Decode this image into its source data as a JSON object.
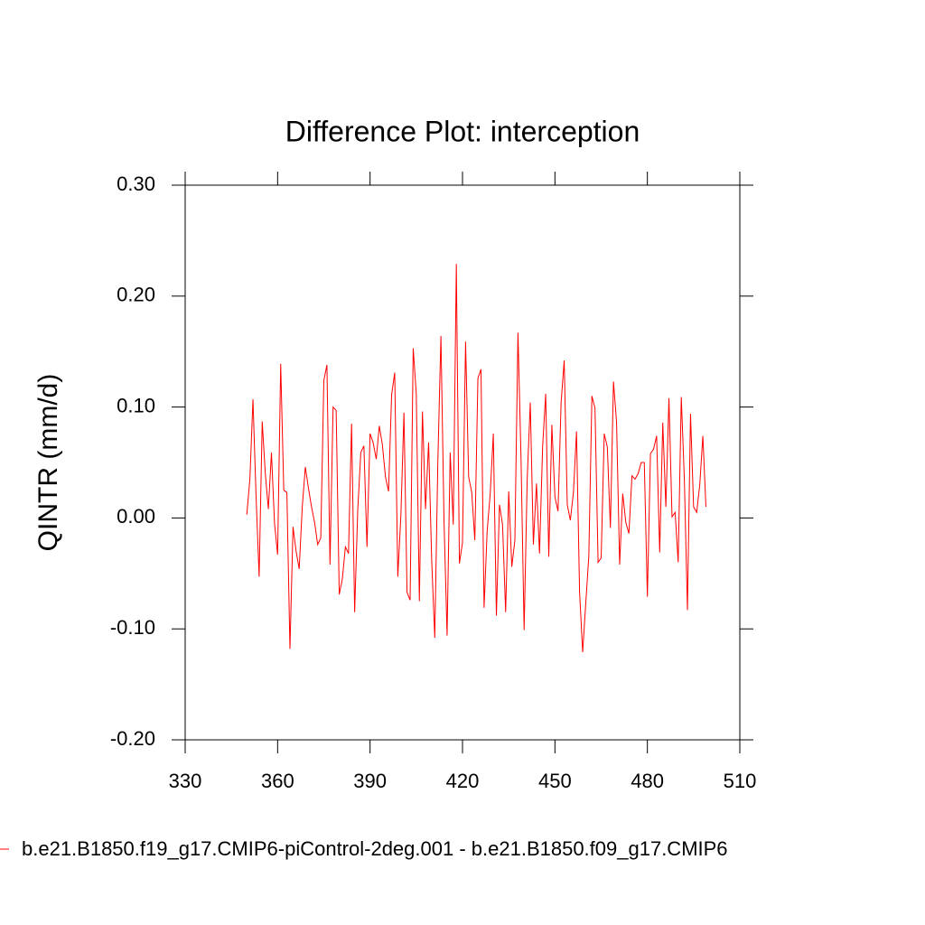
{
  "chart_data": {
    "type": "line",
    "title": "Difference Plot: interception",
    "y_label": "QINTR  (mm/d)",
    "x": [
      350,
      351,
      352,
      353,
      354,
      355,
      356,
      357,
      358,
      359,
      360,
      361,
      362,
      363,
      364,
      365,
      366,
      367,
      368,
      369,
      370,
      371,
      372,
      373,
      374,
      375,
      376,
      377,
      378,
      379,
      380,
      381,
      382,
      383,
      384,
      385,
      386,
      387,
      388,
      389,
      390,
      391,
      392,
      393,
      394,
      395,
      396,
      397,
      398,
      399,
      400,
      401,
      402,
      403,
      404,
      405,
      406,
      407,
      408,
      409,
      410,
      411,
      412,
      413,
      414,
      415,
      416,
      417,
      418,
      419,
      420,
      421,
      422,
      423,
      424,
      425,
      426,
      427,
      428,
      429,
      430,
      431,
      432,
      433,
      434,
      435,
      436,
      437,
      438,
      439,
      440,
      441,
      442,
      443,
      444,
      445,
      446,
      447,
      448,
      449,
      450,
      451,
      452,
      453,
      454,
      455,
      456,
      457,
      458,
      459,
      460,
      461,
      462,
      463,
      464,
      465,
      466,
      467,
      468,
      469,
      470,
      471,
      472,
      473,
      474,
      475,
      476,
      477,
      478,
      479,
      480,
      481,
      482,
      483,
      484,
      485,
      486,
      487,
      488,
      489,
      490,
      491,
      492,
      493,
      494,
      495,
      496,
      497,
      498,
      499
    ],
    "series": [
      {
        "name": "b.e21.B1850.f19_g17.CMIP6-piControl-2deg.001 - b.e21.B1850.f09_g17.CMIP6",
        "color": "#ff0000",
        "values": [
          0.003,
          0.035,
          0.107,
          0.02,
          -0.053,
          0.087,
          0.04,
          0.008,
          0.059,
          -0.005,
          -0.033,
          0.139,
          0.025,
          0.023,
          -0.118,
          -0.008,
          -0.03,
          -0.046,
          0.01,
          0.046,
          0.027,
          0.01,
          -0.004,
          -0.024,
          -0.018,
          0.124,
          0.138,
          -0.042,
          0.1,
          0.097,
          -0.069,
          -0.055,
          -0.026,
          -0.032,
          0.085,
          -0.085,
          0.007,
          0.059,
          0.065,
          -0.026,
          0.076,
          0.068,
          0.053,
          0.083,
          0.066,
          0.037,
          0.024,
          0.111,
          0.131,
          -0.053,
          0.002,
          0.095,
          -0.067,
          -0.074,
          0.153,
          0.112,
          -0.075,
          0.096,
          0.008,
          0.068,
          -0.038,
          -0.108,
          0.051,
          0.164,
          -0.002,
          -0.106,
          0.059,
          -0.006,
          0.229,
          -0.041,
          -0.022,
          0.159,
          0.037,
          0.023,
          -0.02,
          0.126,
          0.134,
          -0.081,
          -0.012,
          0.022,
          0.076,
          -0.088,
          0.012,
          -0.006,
          -0.085,
          0.024,
          -0.044,
          -0.02,
          0.167,
          0.053,
          -0.101,
          0.035,
          0.104,
          -0.024,
          0.031,
          -0.032,
          0.064,
          0.112,
          -0.035,
          0.084,
          0.019,
          0.006,
          0.104,
          0.142,
          0.012,
          -0.002,
          0.023,
          0.078,
          -0.067,
          -0.121,
          -0.077,
          -0.034,
          0.11,
          0.099,
          -0.04,
          -0.036,
          0.076,
          0.064,
          -0.009,
          0.123,
          0.086,
          -0.042,
          0.022,
          -0.004,
          -0.014,
          0.038,
          0.035,
          0.04,
          0.05,
          0.05,
          -0.071,
          0.058,
          0.062,
          0.074,
          -0.031,
          0.086,
          0.01,
          0.108,
          0.001,
          0.005,
          -0.04,
          0.109,
          0.035,
          -0.083,
          0.094,
          0.01,
          0.005,
          0.03,
          0.074,
          0.01
        ]
      }
    ],
    "xlim": [
      330,
      510
    ],
    "xticks": [
      330,
      360,
      390,
      420,
      450,
      480,
      510
    ],
    "ylim": [
      -0.2,
      0.3
    ],
    "yticks": [
      {
        "value": -0.2,
        "label": "-0.20"
      },
      {
        "value": -0.1,
        "label": "-0.10"
      },
      {
        "value": 0,
        "label": "0.00"
      },
      {
        "value": 0.1,
        "label": "0.10"
      },
      {
        "value": 0.2,
        "label": "0.20"
      },
      {
        "value": 0.3,
        "label": "0.30"
      }
    ]
  }
}
